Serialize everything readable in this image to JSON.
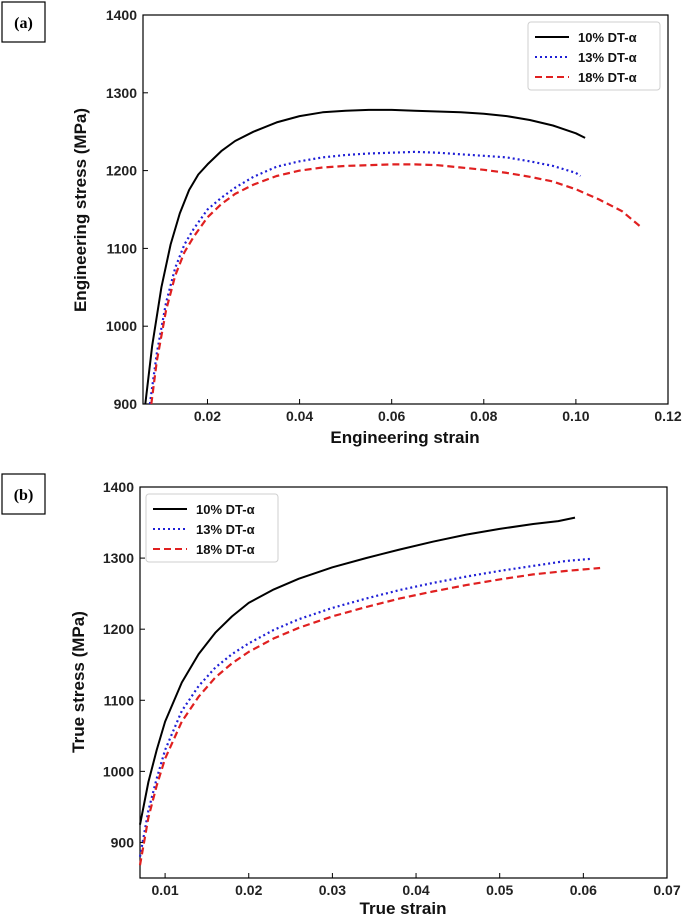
{
  "chart_data": [
    {
      "type": "line",
      "panel_label": "(a)",
      "title": "",
      "xlabel": "Engineering strain",
      "ylabel": "Engineering stress (MPa)",
      "xlim": [
        0.006,
        0.12
      ],
      "ylim": [
        900,
        1400
      ],
      "xticks": [
        0.02,
        0.04,
        0.06,
        0.08,
        0.1,
        0.12
      ],
      "xtick_labels": [
        "0.02",
        "0.04",
        "0.06",
        "0.08",
        "0.10",
        "0.12"
      ],
      "yticks": [
        900,
        1000,
        1100,
        1200,
        1300,
        1400
      ],
      "ytick_labels": [
        "900",
        "1000",
        "1100",
        "1200",
        "1300",
        "1400"
      ],
      "grid": false,
      "legend_position": "top-right",
      "series": [
        {
          "name": "10% DT-α",
          "color": "#000000",
          "style": "solid",
          "x": [
            0.0065,
            0.008,
            0.01,
            0.012,
            0.014,
            0.016,
            0.018,
            0.02,
            0.023,
            0.026,
            0.03,
            0.035,
            0.04,
            0.045,
            0.05,
            0.055,
            0.06,
            0.065,
            0.07,
            0.075,
            0.08,
            0.085,
            0.09,
            0.095,
            0.1,
            0.102
          ],
          "y": [
            900,
            975,
            1050,
            1105,
            1145,
            1175,
            1195,
            1208,
            1225,
            1238,
            1250,
            1262,
            1270,
            1275,
            1277,
            1278,
            1278,
            1277,
            1276,
            1275,
            1273,
            1270,
            1265,
            1258,
            1248,
            1242
          ]
        },
        {
          "name": "13% DT-α",
          "color": "#1f1fd6",
          "style": "dotted",
          "x": [
            0.0075,
            0.009,
            0.011,
            0.013,
            0.015,
            0.017,
            0.02,
            0.023,
            0.026,
            0.03,
            0.035,
            0.04,
            0.045,
            0.05,
            0.055,
            0.06,
            0.065,
            0.07,
            0.075,
            0.08,
            0.085,
            0.09,
            0.095,
            0.1,
            0.101
          ],
          "y": [
            900,
            965,
            1030,
            1075,
            1105,
            1125,
            1150,
            1165,
            1178,
            1192,
            1205,
            1212,
            1217,
            1220,
            1222,
            1223,
            1224,
            1223,
            1221,
            1219,
            1217,
            1212,
            1206,
            1197,
            1193
          ]
        },
        {
          "name": "18% DT-α",
          "color": "#e02020",
          "style": "dashed",
          "x": [
            0.0078,
            0.009,
            0.011,
            0.013,
            0.015,
            0.017,
            0.02,
            0.023,
            0.026,
            0.03,
            0.035,
            0.04,
            0.045,
            0.05,
            0.055,
            0.06,
            0.065,
            0.07,
            0.075,
            0.08,
            0.085,
            0.09,
            0.095,
            0.1,
            0.105,
            0.11,
            0.114
          ],
          "y": [
            900,
            955,
            1020,
            1065,
            1095,
            1115,
            1140,
            1157,
            1170,
            1182,
            1193,
            1200,
            1204,
            1206,
            1207,
            1208,
            1208,
            1207,
            1204,
            1201,
            1197,
            1192,
            1186,
            1176,
            1163,
            1148,
            1128
          ]
        }
      ]
    },
    {
      "type": "line",
      "panel_label": "(b)",
      "title": "",
      "xlabel": "True strain",
      "ylabel": "True stress (MPa)",
      "xlim": [
        0.007,
        0.07
      ],
      "ylim": [
        850,
        1400
      ],
      "xticks": [
        0.01,
        0.02,
        0.03,
        0.04,
        0.05,
        0.06,
        0.07
      ],
      "xtick_labels": [
        "0.01",
        "0.02",
        "0.03",
        "0.04",
        "0.05",
        "0.06",
        "0.07"
      ],
      "yticks": [
        900,
        1000,
        1100,
        1200,
        1300,
        1400
      ],
      "ytick_labels": [
        "900",
        "1000",
        "1100",
        "1200",
        "1300",
        "1400"
      ],
      "grid": false,
      "legend_position": "top-left",
      "series": [
        {
          "name": "10% DT-α",
          "color": "#000000",
          "style": "solid",
          "x": [
            0.007,
            0.008,
            0.009,
            0.01,
            0.012,
            0.014,
            0.016,
            0.018,
            0.02,
            0.023,
            0.026,
            0.03,
            0.034,
            0.038,
            0.042,
            0.046,
            0.05,
            0.054,
            0.057,
            0.059
          ],
          "y": [
            925,
            985,
            1030,
            1070,
            1125,
            1165,
            1195,
            1218,
            1237,
            1256,
            1271,
            1287,
            1300,
            1312,
            1323,
            1333,
            1341,
            1348,
            1352,
            1357
          ]
        },
        {
          "name": "13% DT-α",
          "color": "#1f1fd6",
          "style": "dotted",
          "x": [
            0.007,
            0.008,
            0.009,
            0.01,
            0.012,
            0.014,
            0.016,
            0.018,
            0.02,
            0.023,
            0.026,
            0.03,
            0.034,
            0.038,
            0.042,
            0.046,
            0.05,
            0.054,
            0.058,
            0.061
          ],
          "y": [
            880,
            945,
            990,
            1030,
            1085,
            1120,
            1146,
            1165,
            1180,
            1199,
            1214,
            1230,
            1243,
            1255,
            1265,
            1274,
            1282,
            1289,
            1296,
            1299
          ]
        },
        {
          "name": "18% DT-α",
          "color": "#e02020",
          "style": "dashed",
          "x": [
            0.007,
            0.008,
            0.009,
            0.01,
            0.012,
            0.014,
            0.016,
            0.018,
            0.02,
            0.023,
            0.026,
            0.03,
            0.034,
            0.038,
            0.042,
            0.046,
            0.05,
            0.054,
            0.058,
            0.062
          ],
          "y": [
            868,
            935,
            980,
            1018,
            1070,
            1105,
            1132,
            1152,
            1168,
            1187,
            1202,
            1218,
            1231,
            1243,
            1253,
            1262,
            1270,
            1277,
            1282,
            1286
          ]
        }
      ]
    }
  ]
}
